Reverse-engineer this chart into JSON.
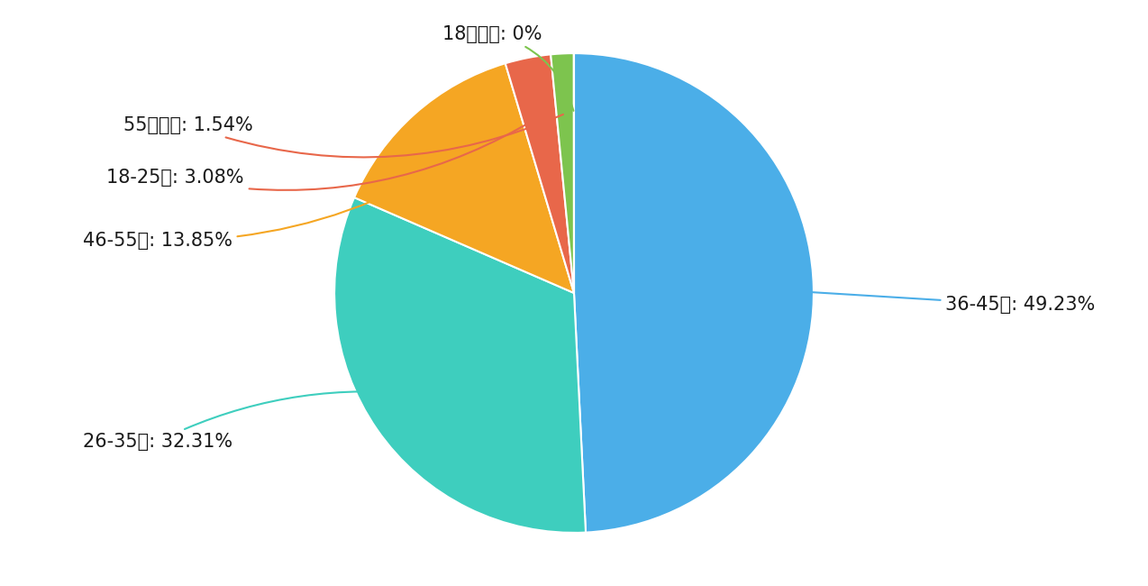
{
  "labels": [
    "36-45岁",
    "26-35岁",
    "46-55岁",
    "18-25岁",
    "55岁以上",
    "18岁以下"
  ],
  "values": [
    49.23,
    32.31,
    13.85,
    3.08,
    1.54,
    0.01
  ],
  "colors": [
    "#4BAEE8",
    "#3ECEBE",
    "#F5A623",
    "#E8674A",
    "#7DC44E",
    "#888888"
  ],
  "label_texts": [
    "36-45岁: 49.23%",
    "26-35岁: 32.31%",
    "46-55岁: 13.85%",
    "18-25岁: 3.08%",
    "55岁以上: 1.54%",
    "18岁以下: 0%"
  ],
  "background_color": "#FFFFFF",
  "text_color": "#1A1A1A",
  "font_size": 15,
  "line_colors": [
    "#4BAEE8",
    "#3ECEBE",
    "#F5A623",
    "#E8674A",
    "#E8674A",
    "#7DC44E"
  ]
}
